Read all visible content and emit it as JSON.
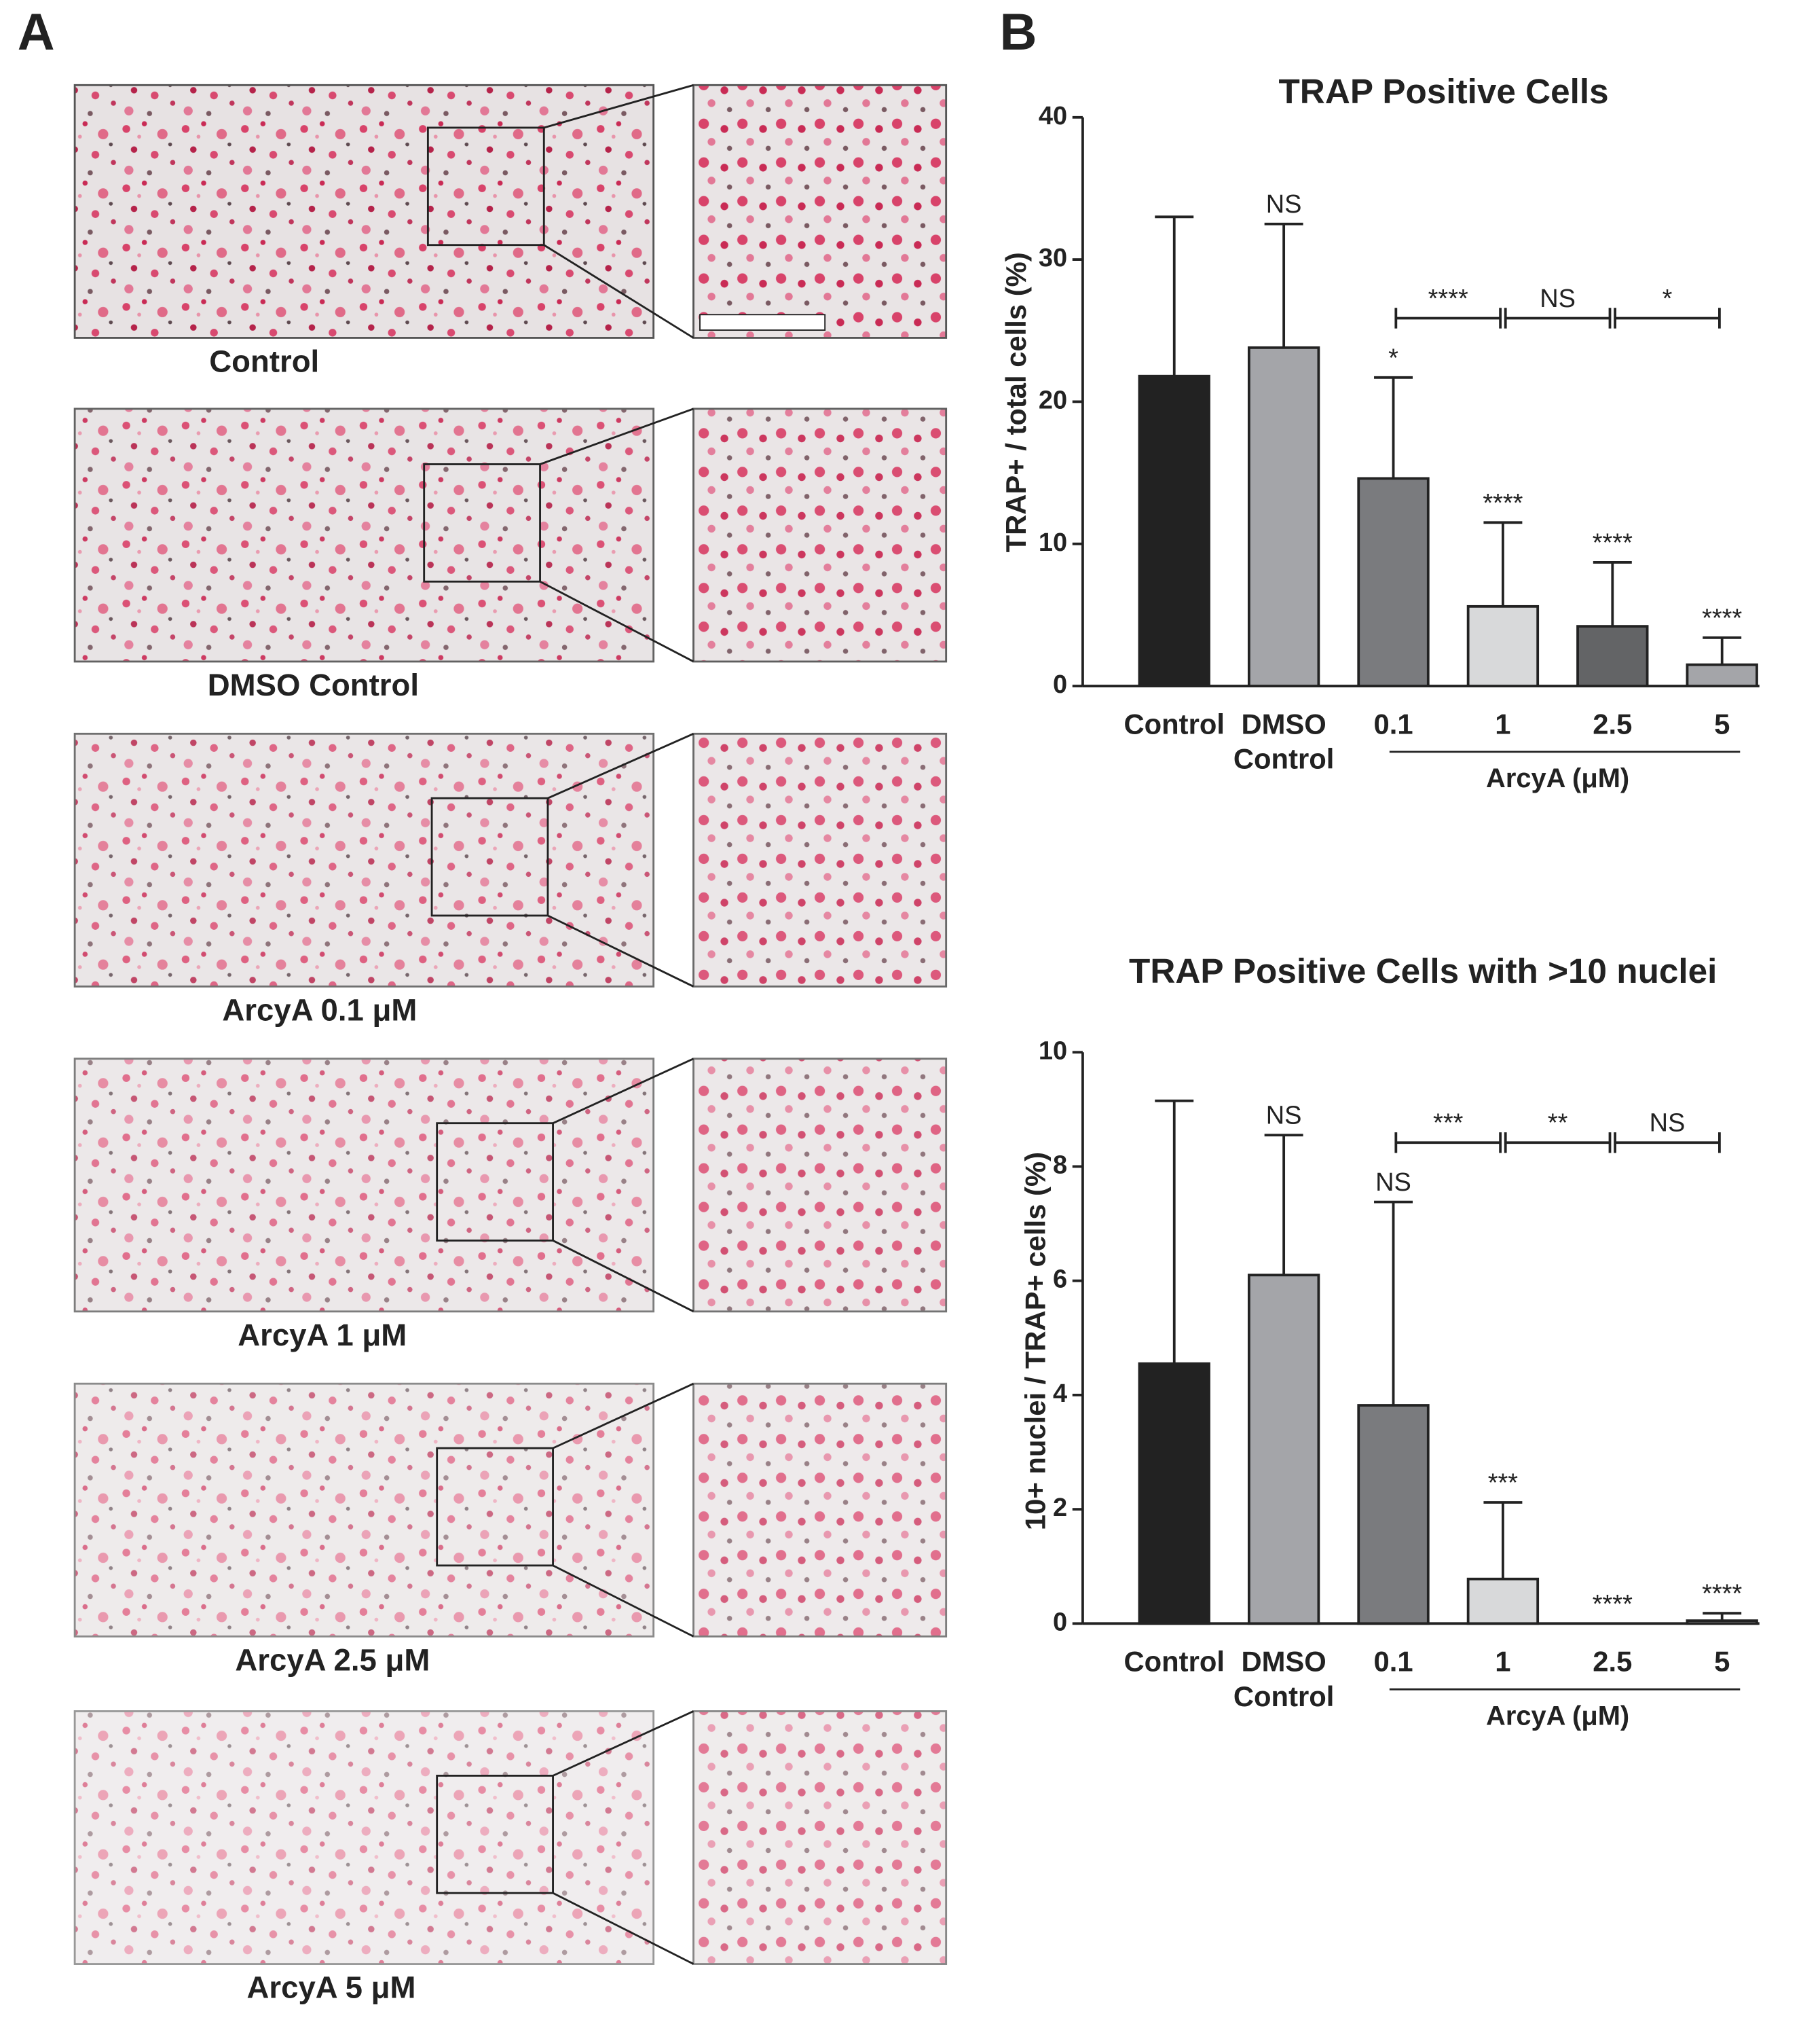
{
  "panel_labels": [
    "A",
    "B"
  ],
  "micrographs": [
    "Control",
    "DMSO Control",
    "ArcyA 0.1 μM",
    "ArcyA 1 μM",
    "ArcyA 2.5 μM",
    "ArcyA 5 μM"
  ],
  "chart_data": [
    {
      "type": "bar",
      "title": "TRAP Positive Cells",
      "y_label": "TRAP+ / total cells (%)",
      "categories": [
        "Control",
        "DMSO Control",
        "0.1",
        "1",
        "2.5",
        "5"
      ],
      "values": [
        21.8,
        23.8,
        14.6,
        5.6,
        4.2,
        1.5
      ],
      "errors": [
        11.2,
        8.7,
        7.1,
        5.9,
        4.5,
        1.9
      ],
      "colors": [
        "#222222",
        "#a4a5a9",
        "#7a7b7e",
        "#d8d9da",
        "#636466",
        "#a4a5a9"
      ],
      "significance": [
        null,
        "NS",
        "*",
        "****",
        "****",
        "****"
      ],
      "group_label": "ArcyA (μM)",
      "group_categories": [
        "0.1",
        "5"
      ],
      "brackets": [
        {
          "label": "****",
          "categories": [
            "0.1",
            "1"
          ]
        },
        {
          "label": "NS",
          "categories": [
            "1",
            "2.5"
          ]
        },
        {
          "label": "*",
          "categories": [
            "2.5",
            "5"
          ]
        }
      ],
      "ylim": [
        0,
        40
      ],
      "yticks": [
        0,
        10,
        20,
        30,
        40
      ]
    },
    {
      "type": "bar",
      "title": "TRAP Positive Cells with >10 nuclei",
      "y_label": "10+ nuclei / TRAP+ cells (%)",
      "categories": [
        "Control",
        "DMSO Control",
        "0.1",
        "1",
        "2.5",
        "5"
      ],
      "values": [
        4.55,
        6.1,
        3.82,
        0.78,
        0,
        0.05
      ],
      "errors": [
        4.6,
        2.45,
        3.56,
        1.34,
        null,
        0.13
      ],
      "colors": [
        "#222222",
        "#a4a5a9",
        "#7a7b7e",
        "#d8d9da",
        "#636466",
        "#a4a5a9"
      ],
      "significance": [
        null,
        "NS",
        "NS",
        "***",
        "****",
        "****"
      ],
      "group_label": "ArcyA (μM)",
      "group_categories": [
        "0.1",
        "5"
      ],
      "brackets": [
        {
          "label": "***",
          "categories": [
            "0.1",
            "1"
          ]
        },
        {
          "label": "**",
          "categories": [
            "1",
            "2.5"
          ]
        },
        {
          "label": "NS",
          "categories": [
            "2.5",
            "5"
          ]
        }
      ],
      "ylim": [
        0,
        10
      ],
      "yticks": [
        0,
        2,
        4,
        6,
        8,
        10
      ]
    }
  ]
}
